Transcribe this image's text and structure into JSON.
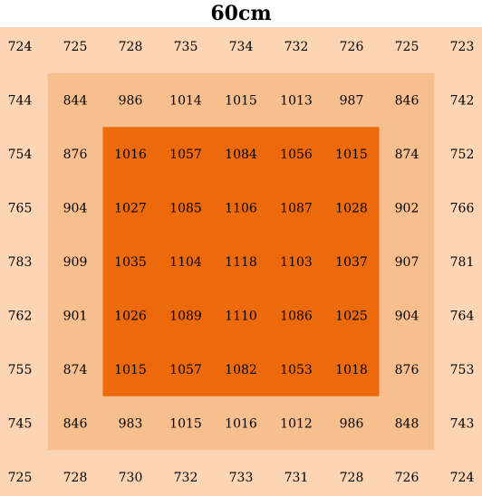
{
  "chart_data": {
    "type": "heatmap",
    "title": "60cm",
    "grid": false,
    "colors": {
      "outer": "#FCD5B5",
      "middle": "#F8BF8E",
      "inner": "#EC6A0C"
    },
    "zones": [
      {
        "name": "outer",
        "row_start": 0,
        "row_end": 8,
        "col_start": 0,
        "col_end": 8
      },
      {
        "name": "middle",
        "row_start": 1,
        "row_end": 7,
        "col_start": 1,
        "col_end": 7
      },
      {
        "name": "inner",
        "row_start": 2,
        "row_end": 6,
        "col_start": 2,
        "col_end": 6
      }
    ],
    "values": [
      [
        724,
        725,
        728,
        735,
        734,
        732,
        726,
        725,
        723
      ],
      [
        744,
        844,
        986,
        1014,
        1015,
        1013,
        987,
        846,
        742
      ],
      [
        754,
        876,
        1016,
        1057,
        1084,
        1056,
        1015,
        874,
        752
      ],
      [
        765,
        904,
        1027,
        1085,
        1106,
        1087,
        1028,
        902,
        766
      ],
      [
        783,
        909,
        1035,
        1104,
        1118,
        1103,
        1037,
        907,
        781
      ],
      [
        762,
        901,
        1026,
        1089,
        1110,
        1086,
        1025,
        904,
        764
      ],
      [
        755,
        874,
        1015,
        1057,
        1082,
        1053,
        1018,
        876,
        753
      ],
      [
        745,
        846,
        983,
        1015,
        1016,
        1012,
        986,
        848,
        743
      ],
      [
        725,
        728,
        730,
        732,
        733,
        731,
        728,
        726,
        724
      ]
    ]
  }
}
